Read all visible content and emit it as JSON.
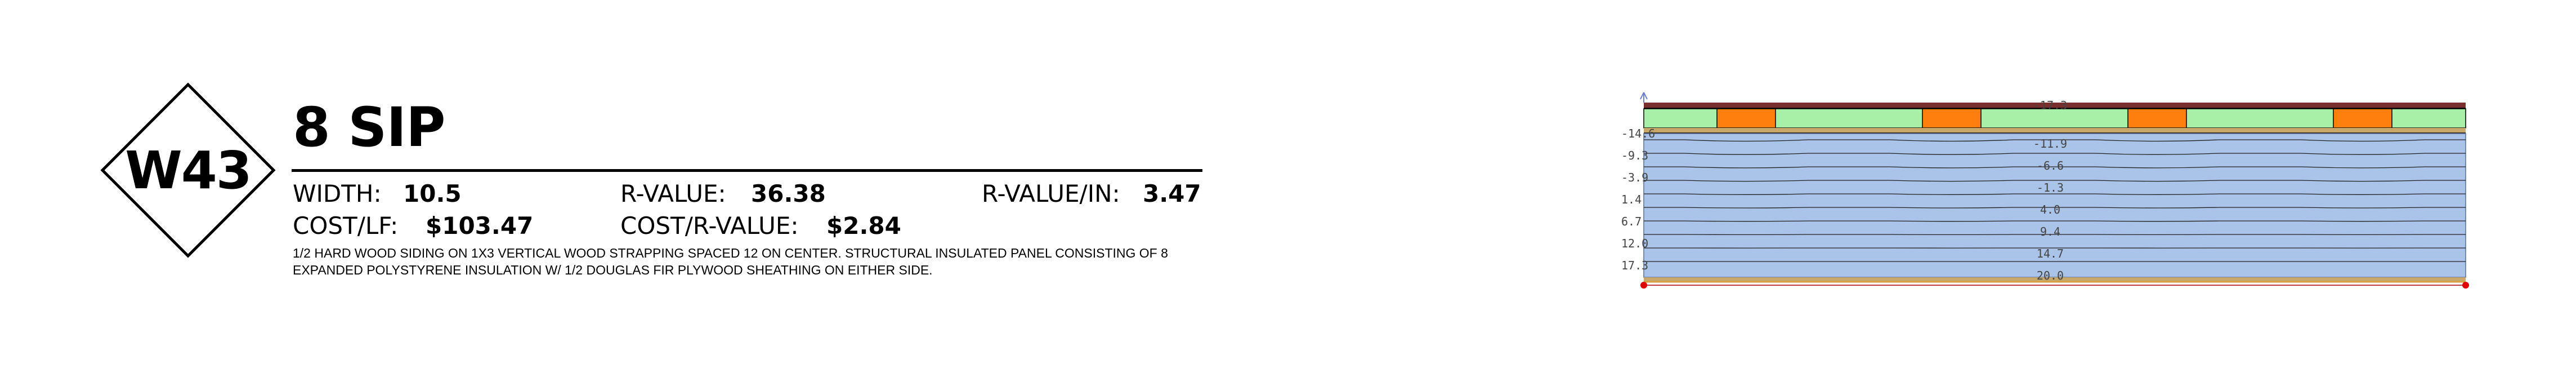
{
  "badge": {
    "code": "W43"
  },
  "title": "8 SIP",
  "specs": {
    "width_label": "WIDTH:",
    "width_value": "10.5",
    "rvalue_label": "R-VALUE:",
    "rvalue_value": "36.38",
    "rvalue_in_label": "R-VALUE/IN:",
    "rvalue_in_value": "3.47",
    "cost_lf_label": "COST/LF:",
    "cost_lf_value": "$103.47",
    "cost_r_label": "COST/R-VALUE:",
    "cost_r_value": "$2.84"
  },
  "description": [
    "1/2 HARD WOOD SIDING ON 1X3 VERTICAL WOOD STRAPPING SPACED 12 ON CENTER. STRUCTURAL INSULATED PANEL CONSISTING OF 8",
    "EXPANDED POLYSTYRENE INSULATION W/ 1/2 DOUGLAS FIR PLYWOOD SHEATHING ON EITHER SIDE."
  ],
  "diagram": {
    "colors": {
      "siding": "#7a2f2f",
      "cavity": "#a8f0a8",
      "strapping": "#ff7f0e",
      "sheathing": "#c8a86a",
      "insulation": "#a9c4e8",
      "interior_line": "#d4a040",
      "endpoint": "#e00000",
      "arrow": "#6a7fd0"
    },
    "left_labels": [
      "-14.6",
      "-9.3",
      "-3.9",
      "1.4",
      "6.7",
      "12.0",
      "17.3"
    ],
    "center_labels": [
      "-17.3",
      "-11.9",
      "-6.6",
      "-1.3",
      "4.0",
      "9.4",
      "14.7",
      "20.0"
    ]
  }
}
